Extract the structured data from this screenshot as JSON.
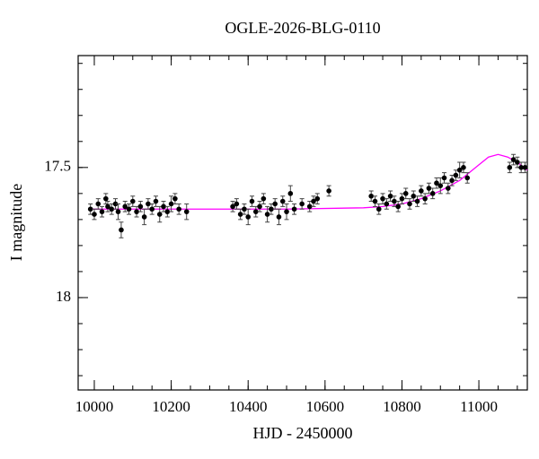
{
  "chart_data": {
    "type": "scatter",
    "title": "OGLE-2026-BLG-0110",
    "x_label": "HJD - 2450000",
    "y_label": "I magnitude",
    "xlim": [
      9958,
      11126
    ],
    "ylim": [
      17.07,
      18.355
    ],
    "y_inverted": true,
    "xticks": [
      10000,
      10200,
      10400,
      10600,
      10800,
      11000
    ],
    "yticks": [
      17.5,
      18
    ],
    "x_minor_ticks": [
      10000,
      10050,
      10100,
      10150,
      10200,
      10250,
      10300,
      10350,
      10400,
      10450,
      10500,
      10550,
      10600,
      10650,
      10700,
      10750,
      10800,
      10850,
      10900,
      10950,
      11000,
      11050,
      11100
    ],
    "y_minor_ticks": [
      17.1,
      17.2,
      17.3,
      17.4,
      17.5,
      17.6,
      17.7,
      17.8,
      17.9,
      18,
      18.1,
      18.2,
      18.3
    ],
    "points": {
      "color": "#000000",
      "x": [
        9990,
        10000,
        10010,
        10020,
        10030,
        10035,
        10045,
        10055,
        10062,
        10070,
        10080,
        10090,
        10100,
        10110,
        10120,
        10130,
        10140,
        10150,
        10160,
        10170,
        10180,
        10190,
        10200,
        10210,
        10220,
        10240,
        10360,
        10370,
        10380,
        10390,
        10400,
        10410,
        10420,
        10430,
        10440,
        10450,
        10460,
        10470,
        10480,
        10490,
        10500,
        10510,
        10520,
        10540,
        10560,
        10570,
        10580,
        10610,
        10720,
        10730,
        10740,
        10750,
        10760,
        10770,
        10780,
        10790,
        10800,
        10810,
        10820,
        10830,
        10840,
        10850,
        10860,
        10870,
        10880,
        10890,
        10900,
        10910,
        10920,
        10930,
        10940,
        10950,
        10960,
        10970,
        11080,
        11090,
        11100,
        11110,
        11120
      ],
      "values": [
        17.66,
        17.68,
        17.64,
        17.67,
        17.62,
        17.65,
        17.66,
        17.64,
        17.67,
        17.74,
        17.65,
        17.66,
        17.63,
        17.67,
        17.65,
        17.69,
        17.64,
        17.66,
        17.63,
        17.68,
        17.65,
        17.67,
        17.64,
        17.62,
        17.66,
        17.67,
        17.65,
        17.64,
        17.68,
        17.66,
        17.69,
        17.63,
        17.67,
        17.65,
        17.62,
        17.68,
        17.66,
        17.64,
        17.69,
        17.63,
        17.67,
        17.6,
        17.66,
        17.64,
        17.65,
        17.63,
        17.62,
        17.59,
        17.61,
        17.63,
        17.66,
        17.62,
        17.64,
        17.61,
        17.63,
        17.65,
        17.62,
        17.6,
        17.64,
        17.61,
        17.63,
        17.59,
        17.62,
        17.58,
        17.6,
        17.56,
        17.57,
        17.54,
        17.58,
        17.55,
        17.53,
        17.51,
        17.5,
        17.54,
        17.5,
        17.47,
        17.48,
        17.5,
        17.5
      ],
      "errors": [
        0.02,
        0.02,
        0.02,
        0.02,
        0.02,
        0.02,
        0.02,
        0.02,
        0.03,
        0.03,
        0.02,
        0.02,
        0.02,
        0.02,
        0.02,
        0.03,
        0.02,
        0.02,
        0.02,
        0.03,
        0.02,
        0.02,
        0.03,
        0.02,
        0.02,
        0.03,
        0.02,
        0.02,
        0.02,
        0.02,
        0.03,
        0.02,
        0.02,
        0.02,
        0.02,
        0.03,
        0.02,
        0.02,
        0.03,
        0.02,
        0.03,
        0.03,
        0.02,
        0.02,
        0.02,
        0.02,
        0.02,
        0.02,
        0.02,
        0.02,
        0.02,
        0.02,
        0.02,
        0.02,
        0.02,
        0.02,
        0.02,
        0.02,
        0.02,
        0.02,
        0.02,
        0.02,
        0.02,
        0.02,
        0.02,
        0.02,
        0.03,
        0.02,
        0.02,
        0.02,
        0.02,
        0.03,
        0.02,
        0.02,
        0.02,
        0.02,
        0.02,
        0.02,
        0.02
      ]
    },
    "model": {
      "color": "#ff00ff",
      "x": [
        9990,
        10100,
        10300,
        10500,
        10700,
        10750,
        10800,
        10850,
        10900,
        10950,
        11000,
        11025,
        11050,
        11075,
        11100,
        11126
      ],
      "values": [
        17.66,
        17.66,
        17.66,
        17.66,
        17.655,
        17.65,
        17.64,
        17.62,
        17.59,
        17.55,
        17.49,
        17.46,
        17.45,
        17.46,
        17.48,
        17.51
      ]
    }
  }
}
